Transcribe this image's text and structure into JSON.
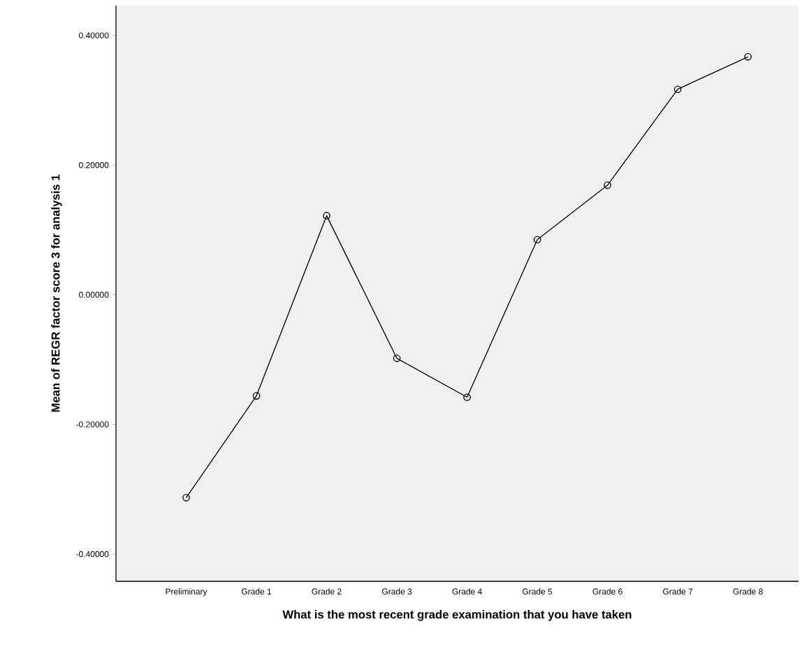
{
  "chart_data": {
    "type": "line",
    "xlabel": "What is the most recent grade examination that you have taken",
    "ylabel": "Mean of REGR factor score   3 for analysis 1",
    "categories": [
      "Preliminary",
      "Grade 1",
      "Grade 2",
      "Grade 3",
      "Grade 4",
      "Grade 5",
      "Grade 6",
      "Grade 7",
      "Grade 8"
    ],
    "values": [
      -0.313,
      -0.156,
      0.122,
      -0.098,
      -0.158,
      0.085,
      0.169,
      0.317,
      0.367
    ],
    "color": "#000000",
    "ylim": [
      -0.442,
      0.446
    ],
    "yticks": [
      {
        "value": -0.4,
        "label": "-0.40000"
      },
      {
        "value": -0.2,
        "label": "-0.20000"
      },
      {
        "value": 0,
        "label": "0.00000"
      },
      {
        "value": 0.2,
        "label": "0.20000"
      },
      {
        "value": 0.4,
        "label": "0.40000"
      }
    ],
    "marker": "circle",
    "line_style": "solid",
    "grid": false
  }
}
